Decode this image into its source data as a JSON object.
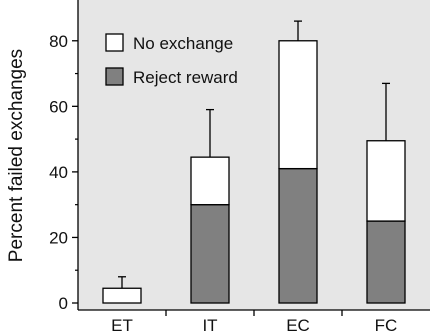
{
  "chart_data": {
    "type": "bar",
    "stacked": true,
    "categories": [
      "ET",
      "IT",
      "EC",
      "FC"
    ],
    "series": [
      {
        "name": "Reject reward",
        "values": [
          0,
          30,
          41,
          25
        ],
        "color": "#808080"
      },
      {
        "name": "No exchange",
        "values": [
          4.5,
          14.5,
          39,
          24.5
        ],
        "color": "#ffffff"
      }
    ],
    "totals": [
      4.5,
      44.5,
      80,
      49.5
    ],
    "error_upper": [
      8,
      59,
      86,
      67
    ],
    "ylabel": "Percent failed exchanges",
    "xlabel": "",
    "ylim": [
      0,
      90
    ],
    "yticks": [
      0,
      20,
      40,
      60,
      80
    ],
    "grid": false,
    "legend_position": "top-left",
    "background_color": "#e6e6e6"
  }
}
